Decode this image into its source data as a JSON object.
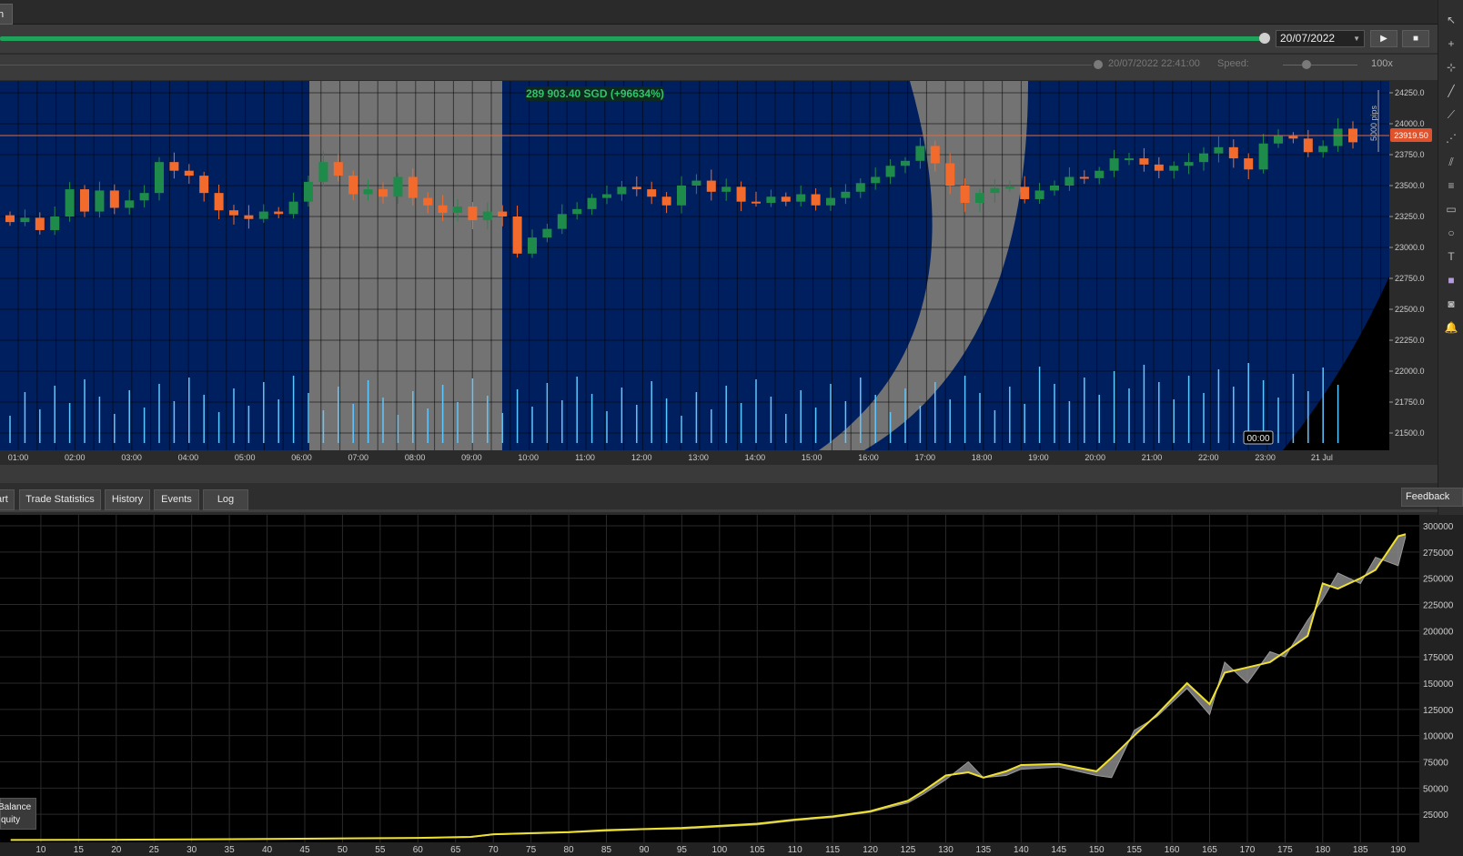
{
  "top_tab": "h",
  "playback": {
    "date": "20/07/2022",
    "play_icon": "play-icon",
    "stop_icon": "stop-icon",
    "time": "20/07/2022 22:41:00",
    "speed_label": "Speed:",
    "speed_value": "100x"
  },
  "chart": {
    "pnl": "289 903.40 SGD (+96634%)",
    "current_price": "23919.50",
    "ruler": "5000 pips",
    "cursor_time": "00:00",
    "price_ticks": [
      "24250.0",
      "24000.0",
      "23750.0",
      "23500.0",
      "23250.0",
      "23000.0",
      "22750.0",
      "22500.0",
      "22250.0",
      "22000.0",
      "21750.0",
      "21500.0"
    ],
    "time_ticks": [
      "01:00",
      "02:00",
      "03:00",
      "04:00",
      "05:00",
      "06:00",
      "07:00",
      "08:00",
      "09:00",
      "10:00",
      "11:00",
      "12:00",
      "13:00",
      "14:00",
      "15:00",
      "16:00",
      "17:00",
      "18:00",
      "19:00",
      "20:00",
      "21:00",
      "22:00",
      "23:00",
      "21 Jul"
    ]
  },
  "tabs": [
    {
      "label": "art"
    },
    {
      "label": "Trade Statistics"
    },
    {
      "label": "History"
    },
    {
      "label": "Events"
    },
    {
      "label": "Log"
    }
  ],
  "feedback": "Feedback",
  "legend": {
    "balance": "Balance",
    "equity": "quity"
  },
  "chart_data": {
    "type": "line",
    "y_ticks": [
      "300000",
      "275000",
      "250000",
      "225000",
      "200000",
      "175000",
      "150000",
      "125000",
      "100000",
      "75000",
      "50000",
      "25000"
    ],
    "x_ticks": [
      "10",
      "15",
      "20",
      "25",
      "30",
      "35",
      "40",
      "45",
      "50",
      "55",
      "60",
      "65",
      "70",
      "75",
      "80",
      "85",
      "90",
      "95",
      "100",
      "105",
      "110",
      "115",
      "120",
      "125",
      "130",
      "135",
      "140",
      "145",
      "150",
      "155",
      "160",
      "165",
      "170",
      "175",
      "180",
      "185",
      "190"
    ],
    "ylim": [
      0,
      300000
    ],
    "series": [
      {
        "name": "Balance",
        "x": [
          6,
          20,
          40,
          60,
          67,
          70,
          75,
          80,
          85,
          90,
          95,
          100,
          105,
          110,
          115,
          120,
          125,
          127,
          130,
          133,
          135,
          138,
          140,
          145,
          150,
          152,
          155,
          158,
          162,
          165,
          167,
          170,
          173,
          175,
          178,
          180,
          182,
          185,
          187,
          190,
          191
        ],
        "values": [
          500,
          800,
          1500,
          2500,
          3500,
          6000,
          7000,
          8000,
          10000,
          11000,
          12000,
          14000,
          16000,
          20000,
          23000,
          28000,
          38000,
          47000,
          62000,
          65000,
          60000,
          66000,
          72000,
          73000,
          66000,
          79000,
          100000,
          120000,
          150000,
          130000,
          160000,
          165000,
          170000,
          180000,
          195000,
          245000,
          240000,
          250000,
          258000,
          290000,
          292000
        ]
      },
      {
        "name": "Equity",
        "x": [
          6,
          20,
          40,
          60,
          67,
          70,
          75,
          80,
          85,
          90,
          95,
          100,
          105,
          110,
          115,
          120,
          125,
          127,
          130,
          133,
          135,
          138,
          140,
          145,
          150,
          152,
          155,
          158,
          162,
          165,
          167,
          170,
          173,
          175,
          178,
          180,
          182,
          185,
          187,
          190,
          191
        ],
        "values": [
          400,
          700,
          1300,
          2200,
          3000,
          5500,
          6500,
          7500,
          9000,
          10500,
          11000,
          13000,
          15000,
          19000,
          22000,
          27000,
          36000,
          44000,
          58000,
          75000,
          60000,
          62000,
          68000,
          70000,
          62000,
          60000,
          105000,
          118000,
          145000,
          120000,
          170000,
          150000,
          180000,
          175000,
          210000,
          230000,
          255000,
          245000,
          270000,
          262000,
          290000
        ]
      }
    ]
  }
}
